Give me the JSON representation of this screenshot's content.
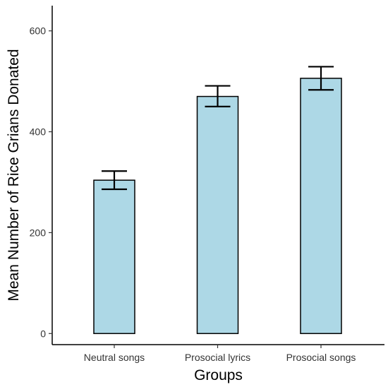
{
  "chart_data": {
    "type": "bar",
    "categories": [
      "Neutral songs",
      "Prosocial lyrics",
      "Prosocial songs"
    ],
    "values": [
      304,
      470,
      506
    ],
    "error_bars": [
      {
        "low": 286,
        "high": 322
      },
      {
        "low": 450,
        "high": 491
      },
      {
        "low": 483,
        "high": 529
      }
    ],
    "xlabel": "Groups",
    "ylabel": "Mean Number of Rice Grians Donated",
    "ylim": [
      -22,
      650
    ],
    "yticks": [
      0,
      200,
      400,
      600
    ],
    "grid": false,
    "bar_color": "#add8e6",
    "bar_edge_color": "#000000"
  }
}
